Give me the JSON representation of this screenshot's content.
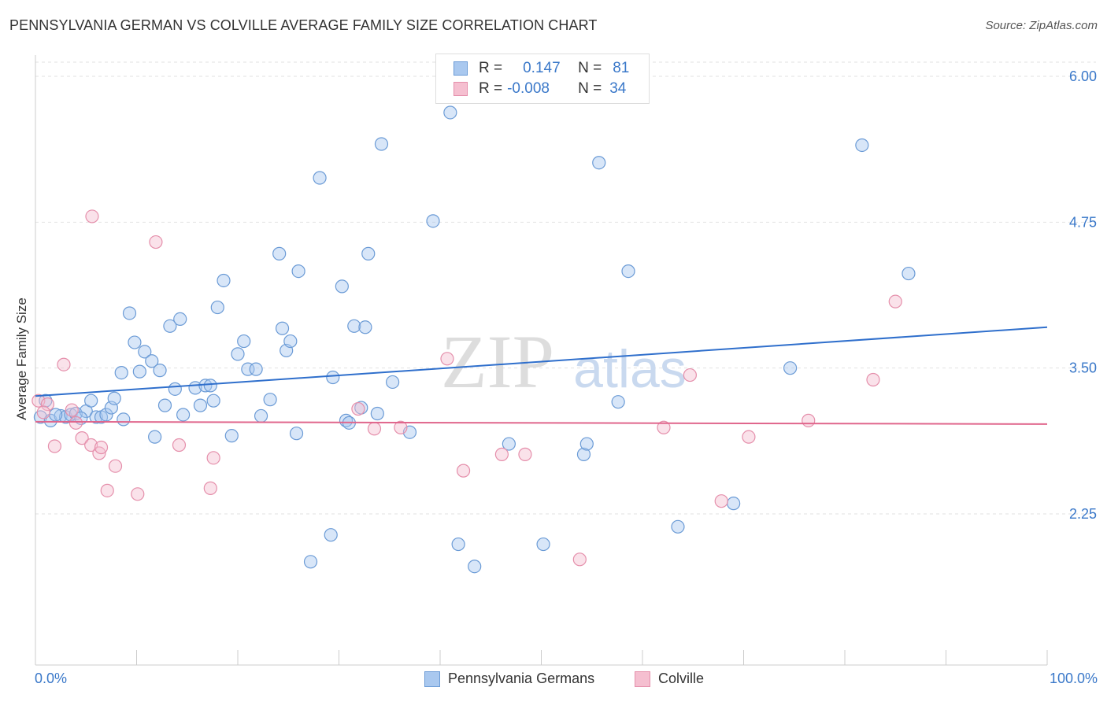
{
  "title": "PENNSYLVANIA GERMAN VS COLVILLE AVERAGE FAMILY SIZE CORRELATION CHART",
  "source": "Source: ZipAtlas.com",
  "watermark": {
    "zip": "ZIP",
    "atlas": "atlas"
  },
  "legend": {
    "row1": {
      "r_label": "R =",
      "r_value": "0.147",
      "n_label": "N =",
      "n_value": "81"
    },
    "row2": {
      "r_label": "R =",
      "r_value": "-0.008",
      "n_label": "N =",
      "n_value": "34"
    }
  },
  "colors": {
    "blue_fill": "#a9c8ef",
    "blue_stroke": "#6b9bd6",
    "blue_line": "#2f6fcc",
    "pink_fill": "#f5bfd0",
    "pink_stroke": "#e58fab",
    "pink_line": "#e0668c",
    "axis_text": "#3a78c9",
    "grid": "#e2e2e2"
  },
  "chart_data": {
    "type": "scatter",
    "title": "PENNSYLVANIA GERMAN VS COLVILLE AVERAGE FAMILY SIZE CORRELATION CHART",
    "xlabel": "",
    "ylabel": "Average Family Size",
    "xlim": [
      0,
      100
    ],
    "ylim": [
      1.0,
      6.2
    ],
    "x_tick_labels": [
      "0.0%",
      "100.0%"
    ],
    "y_ticks": [
      2.25,
      3.5,
      4.75,
      6.0
    ],
    "y_tick_labels": [
      "2.25",
      "3.50",
      "4.75",
      "6.00"
    ],
    "series": [
      {
        "name": "Pennsylvania Germans",
        "color": "#a9c8ef",
        "trend": {
          "x": [
            0,
            100
          ],
          "y": [
            3.26,
            3.85
          ]
        },
        "points": [
          [
            0.5,
            3.08
          ],
          [
            1.5,
            3.05
          ],
          [
            2.5,
            3.09
          ],
          [
            3.0,
            3.08
          ],
          [
            3.5,
            3.1
          ],
          [
            4.0,
            3.11
          ],
          [
            5.0,
            3.13
          ],
          [
            5.5,
            3.22
          ],
          [
            6.0,
            3.08
          ],
          [
            6.5,
            3.08
          ],
          [
            7.0,
            3.1
          ],
          [
            7.5,
            3.16
          ],
          [
            7.8,
            3.24
          ],
          [
            8.5,
            3.46
          ],
          [
            8.7,
            3.06
          ],
          [
            9.3,
            3.97
          ],
          [
            9.8,
            3.72
          ],
          [
            10.3,
            3.47
          ],
          [
            10.8,
            3.64
          ],
          [
            11.5,
            3.56
          ],
          [
            11.8,
            2.91
          ],
          [
            12.3,
            3.48
          ],
          [
            12.8,
            3.18
          ],
          [
            13.3,
            3.86
          ],
          [
            13.8,
            3.32
          ],
          [
            14.3,
            3.92
          ],
          [
            14.6,
            3.1
          ],
          [
            15.8,
            3.33
          ],
          [
            16.3,
            3.18
          ],
          [
            16.8,
            3.35
          ],
          [
            17.3,
            3.35
          ],
          [
            17.6,
            3.22
          ],
          [
            18.0,
            4.02
          ],
          [
            18.6,
            4.25
          ],
          [
            19.4,
            2.92
          ],
          [
            20.0,
            3.62
          ],
          [
            20.6,
            3.73
          ],
          [
            21.0,
            3.49
          ],
          [
            21.8,
            3.49
          ],
          [
            22.3,
            3.09
          ],
          [
            23.2,
            3.23
          ],
          [
            24.1,
            4.48
          ],
          [
            24.4,
            3.84
          ],
          [
            24.8,
            3.65
          ],
          [
            25.2,
            3.73
          ],
          [
            25.8,
            2.94
          ],
          [
            26.0,
            4.33
          ],
          [
            27.2,
            1.84
          ],
          [
            28.1,
            5.13
          ],
          [
            29.2,
            2.07
          ],
          [
            29.4,
            3.42
          ],
          [
            30.3,
            4.2
          ],
          [
            30.7,
            3.05
          ],
          [
            31.0,
            3.03
          ],
          [
            31.5,
            3.86
          ],
          [
            32.2,
            3.16
          ],
          [
            32.6,
            3.85
          ],
          [
            32.9,
            4.48
          ],
          [
            33.8,
            3.11
          ],
          [
            34.2,
            5.42
          ],
          [
            35.3,
            3.38
          ],
          [
            37.0,
            2.95
          ],
          [
            39.3,
            4.76
          ],
          [
            41.0,
            5.69
          ],
          [
            41.8,
            1.99
          ],
          [
            43.4,
            1.8
          ],
          [
            46.8,
            2.85
          ],
          [
            50.2,
            1.99
          ],
          [
            54.2,
            2.76
          ],
          [
            54.5,
            2.85
          ],
          [
            55.7,
            5.26
          ],
          [
            57.6,
            3.21
          ],
          [
            58.6,
            4.33
          ],
          [
            63.5,
            2.14
          ],
          [
            69.0,
            2.34
          ],
          [
            74.6,
            3.5
          ],
          [
            81.7,
            5.41
          ],
          [
            86.3,
            4.31
          ],
          [
            1.0,
            3.22
          ],
          [
            2.0,
            3.1
          ],
          [
            4.5,
            3.07
          ]
        ]
      },
      {
        "name": "Colville",
        "color": "#f5bfd0",
        "trend": {
          "x": [
            0,
            100
          ],
          "y": [
            3.04,
            3.02
          ]
        },
        "points": [
          [
            0.3,
            3.22
          ],
          [
            1.2,
            3.19
          ],
          [
            1.9,
            2.83
          ],
          [
            2.8,
            3.53
          ],
          [
            3.6,
            3.14
          ],
          [
            4.0,
            3.03
          ],
          [
            4.6,
            2.9
          ],
          [
            5.5,
            2.84
          ],
          [
            5.6,
            4.8
          ],
          [
            6.3,
            2.77
          ],
          [
            6.5,
            2.82
          ],
          [
            7.1,
            2.45
          ],
          [
            7.9,
            2.66
          ],
          [
            10.1,
            2.42
          ],
          [
            11.9,
            4.58
          ],
          [
            14.2,
            2.84
          ],
          [
            17.3,
            2.47
          ],
          [
            17.6,
            2.73
          ],
          [
            31.9,
            3.15
          ],
          [
            33.5,
            2.98
          ],
          [
            36.1,
            2.99
          ],
          [
            40.7,
            3.58
          ],
          [
            42.3,
            2.62
          ],
          [
            46.1,
            2.76
          ],
          [
            48.4,
            2.76
          ],
          [
            53.8,
            1.86
          ],
          [
            62.1,
            2.99
          ],
          [
            64.7,
            3.44
          ],
          [
            67.8,
            2.36
          ],
          [
            70.5,
            2.91
          ],
          [
            76.4,
            3.05
          ],
          [
            82.8,
            3.4
          ],
          [
            85.0,
            4.07
          ],
          [
            0.8,
            3.12
          ]
        ]
      }
    ]
  },
  "bottom_legend": {
    "series1": "Pennsylvania Germans",
    "series2": "Colville"
  }
}
